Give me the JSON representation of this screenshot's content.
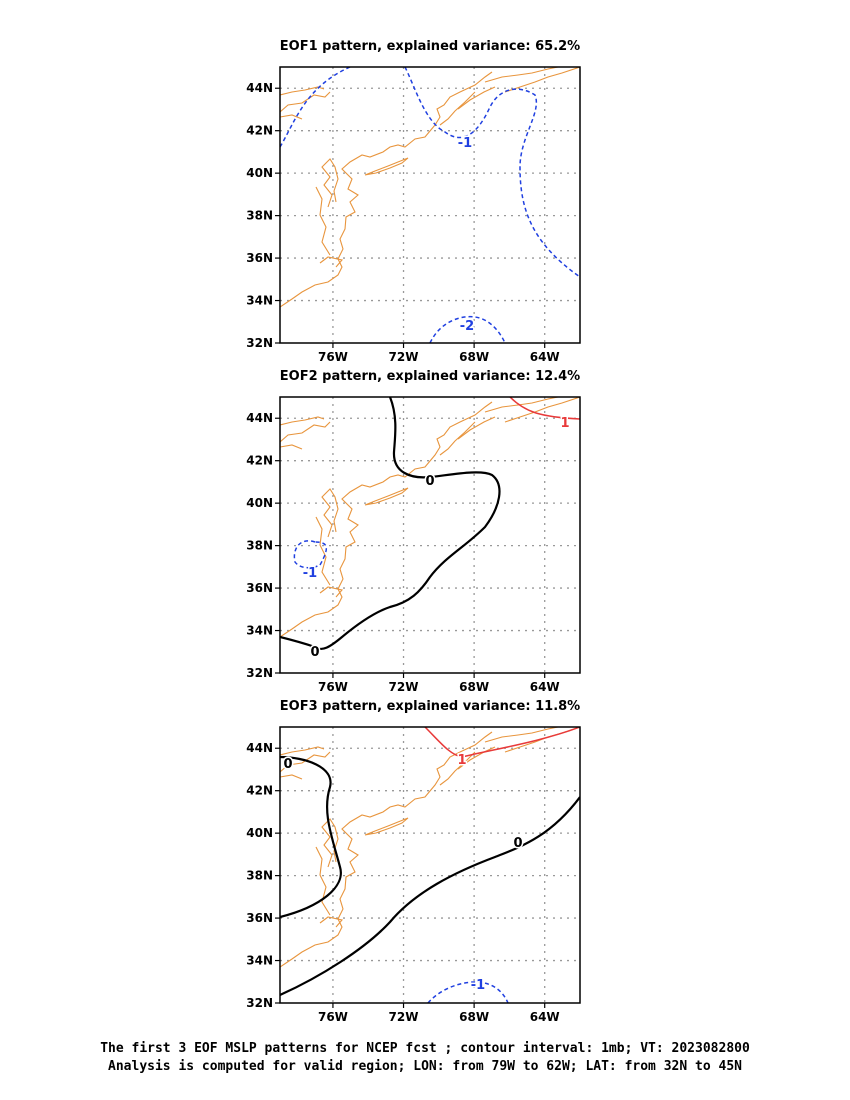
{
  "panels": [
    {
      "title": "EOF1 pattern, explained variance: 65.2%",
      "contour_labels": [
        {
          "text": "-1",
          "color": "blue"
        },
        {
          "text": "-2",
          "color": "blue"
        }
      ]
    },
    {
      "title": "EOF2 pattern, explained variance: 12.4%",
      "contour_labels": [
        {
          "text": "0",
          "color": "black"
        },
        {
          "text": "0",
          "color": "black"
        },
        {
          "text": "1",
          "color": "red"
        },
        {
          "text": "-1",
          "color": "blue"
        }
      ]
    },
    {
      "title": "EOF3 pattern, explained variance: 11.8%",
      "contour_labels": [
        {
          "text": "0",
          "color": "black"
        },
        {
          "text": "0",
          "color": "black"
        },
        {
          "text": "1",
          "color": "red"
        },
        {
          "text": "-1",
          "color": "blue"
        }
      ]
    }
  ],
  "axes": {
    "lat_labels": [
      "44N",
      "42N",
      "40N",
      "38N",
      "36N",
      "34N",
      "32N"
    ],
    "lon_labels": [
      "76W",
      "72W",
      "68W",
      "64W"
    ],
    "lon_range": [
      "79W",
      "62W"
    ],
    "lat_range": [
      "32N",
      "45N"
    ]
  },
  "colors": {
    "coastline": "#e8953d",
    "grid": "#999999",
    "positive": "#e83a3a",
    "negative": "#2040e0",
    "zero": "#000000"
  },
  "footer": {
    "line1": "The first 3 EOF MSLP patterns for NCEP fcst ; contour interval: 1mb; VT: 2023082800",
    "line2": "Analysis is computed for valid region; LON: from 79W to 62W; LAT: from 32N to 45N"
  }
}
